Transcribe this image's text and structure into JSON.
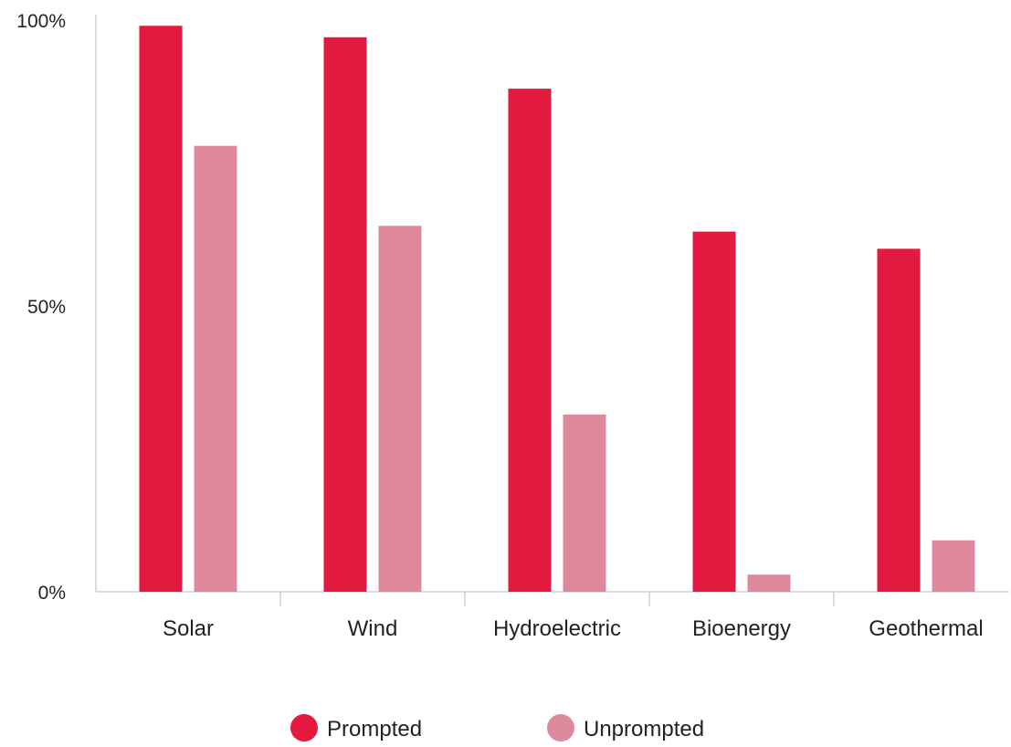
{
  "chart_data": {
    "type": "bar",
    "categories": [
      "Solar",
      "Wind",
      "Hydroelectric",
      "Bioenergy",
      "Geothermal"
    ],
    "series": [
      {
        "name": "Prompted",
        "values": [
          99,
          97,
          88,
          63,
          60
        ],
        "color": "#E3193F"
      },
      {
        "name": "Unprompted",
        "values": [
          78,
          64,
          31,
          3,
          9
        ],
        "color": "#DE889B"
      }
    ],
    "y_ticks": [
      "0%",
      "50%",
      "100%"
    ],
    "ylim": [
      0,
      100
    ],
    "xlabel": "",
    "ylabel": "",
    "legend_position": "bottom-center",
    "grid": false,
    "axis_color": "#C5D3E0"
  }
}
